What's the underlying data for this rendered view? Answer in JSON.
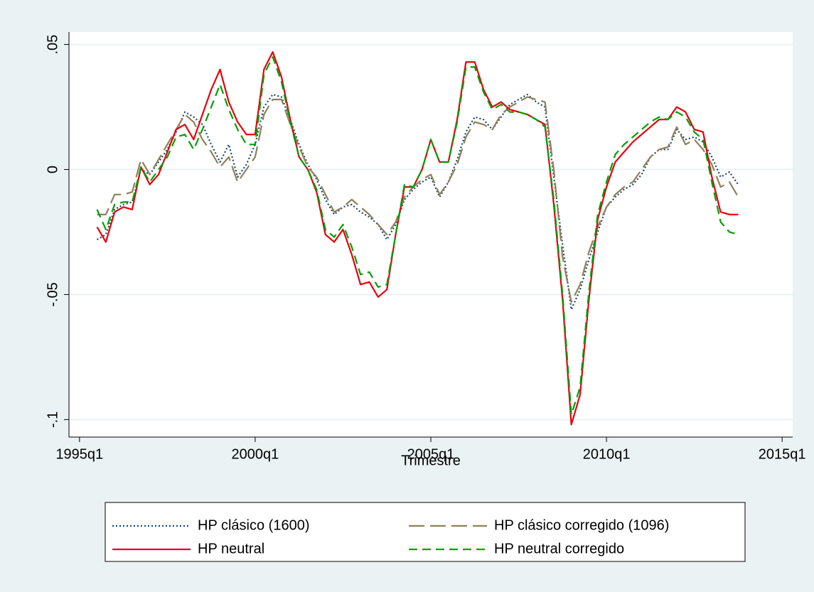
{
  "chart_data": {
    "type": "line",
    "xlabel": "Trimestre",
    "x": [
      1995.5,
      1995.75,
      1996,
      1996.25,
      1996.5,
      1996.75,
      1997,
      1997.25,
      1997.5,
      1997.75,
      1998,
      1998.25,
      1998.5,
      1998.75,
      1999,
      1999.25,
      1999.5,
      1999.75,
      2000,
      2000.25,
      2000.5,
      2000.75,
      2001,
      2001.25,
      2001.5,
      2001.75,
      2002,
      2002.25,
      2002.5,
      2002.75,
      2003,
      2003.25,
      2003.5,
      2003.75,
      2004,
      2004.25,
      2004.5,
      2004.75,
      2005,
      2005.25,
      2005.5,
      2005.75,
      2006,
      2006.25,
      2006.5,
      2006.75,
      2007,
      2007.25,
      2007.5,
      2007.75,
      2008,
      2008.25,
      2008.5,
      2008.75,
      2009,
      2009.25,
      2009.5,
      2009.75,
      2010,
      2010.25,
      2010.5,
      2010.75,
      2011,
      2011.25,
      2011.5,
      2011.75,
      2012,
      2012.25,
      2012.5,
      2012.75,
      2013,
      2013.25,
      2013.5,
      2013.75
    ],
    "series": [
      {
        "name": "HP clásico (1600)",
        "color": "#1a476f",
        "dash": "2 3",
        "values": [
          -0.028,
          -0.026,
          -0.016,
          -0.014,
          -0.013,
          0.0,
          -0.002,
          0.003,
          0.008,
          0.015,
          0.023,
          0.021,
          0.018,
          0.01,
          0.003,
          0.01,
          -0.003,
          0.002,
          0.01,
          0.025,
          0.03,
          0.029,
          0.02,
          0.01,
          0.002,
          -0.004,
          -0.012,
          -0.018,
          -0.015,
          -0.014,
          -0.017,
          -0.019,
          -0.022,
          -0.028,
          -0.022,
          -0.012,
          -0.008,
          -0.005,
          -0.003,
          -0.011,
          -0.005,
          0.004,
          0.015,
          0.021,
          0.02,
          0.016,
          0.021,
          0.026,
          0.028,
          0.03,
          0.027,
          0.025,
          -0.003,
          -0.03,
          -0.056,
          -0.048,
          -0.036,
          -0.025,
          -0.015,
          -0.011,
          -0.008,
          -0.006,
          -0.002,
          0.005,
          0.008,
          0.008,
          0.016,
          0.012,
          0.013,
          0.011,
          0.005,
          -0.003,
          -0.001,
          -0.006
        ]
      },
      {
        "name": "HP clásico corregido (1096)",
        "color": "#90805a",
        "dash": "22 8",
        "values": [
          -0.018,
          -0.018,
          -0.01,
          -0.01,
          -0.009,
          0.004,
          -0.002,
          0.004,
          0.01,
          0.016,
          0.022,
          0.019,
          0.012,
          0.007,
          0.001,
          0.005,
          -0.005,
          0.0,
          0.005,
          0.022,
          0.028,
          0.028,
          0.018,
          0.009,
          0.001,
          -0.003,
          -0.01,
          -0.017,
          -0.015,
          -0.012,
          -0.015,
          -0.018,
          -0.022,
          -0.026,
          -0.021,
          -0.011,
          -0.007,
          -0.004,
          -0.002,
          -0.01,
          -0.005,
          0.002,
          0.013,
          0.019,
          0.018,
          0.016,
          0.022,
          0.025,
          0.027,
          0.029,
          0.028,
          0.027,
          0.0,
          -0.035,
          -0.053,
          -0.046,
          -0.033,
          -0.023,
          -0.015,
          -0.01,
          -0.007,
          -0.005,
          0.0,
          0.005,
          0.008,
          0.009,
          0.017,
          0.01,
          0.012,
          0.008,
          0.002,
          -0.007,
          -0.005,
          -0.011
        ]
      },
      {
        "name": "HP neutral",
        "color": "#e8000b",
        "dash": "none",
        "values": [
          -0.023,
          -0.029,
          -0.017,
          -0.015,
          -0.016,
          0.001,
          -0.006,
          -0.002,
          0.007,
          0.016,
          0.018,
          0.012,
          0.022,
          0.032,
          0.04,
          0.027,
          0.019,
          0.014,
          0.014,
          0.04,
          0.047,
          0.037,
          0.02,
          0.005,
          0.0,
          -0.009,
          -0.026,
          -0.029,
          -0.024,
          -0.034,
          -0.046,
          -0.045,
          -0.051,
          -0.048,
          -0.026,
          -0.007,
          -0.007,
          0.0,
          0.012,
          0.003,
          0.003,
          0.02,
          0.043,
          0.043,
          0.032,
          0.025,
          0.027,
          0.024,
          0.023,
          0.022,
          0.02,
          0.018,
          -0.014,
          -0.052,
          -0.102,
          -0.09,
          -0.052,
          -0.02,
          -0.007,
          0.003,
          0.007,
          0.011,
          0.014,
          0.017,
          0.02,
          0.02,
          0.025,
          0.023,
          0.016,
          0.015,
          -0.003,
          -0.017,
          -0.018,
          -0.018
        ]
      },
      {
        "name": "HP neutral corregido",
        "color": "#00a000",
        "dash": "12 7",
        "values": [
          -0.016,
          -0.024,
          -0.014,
          -0.013,
          -0.013,
          0.001,
          -0.005,
          0.0,
          0.005,
          0.013,
          0.014,
          0.008,
          0.016,
          0.025,
          0.034,
          0.024,
          0.016,
          0.01,
          0.01,
          0.038,
          0.045,
          0.035,
          0.019,
          0.005,
          0.0,
          -0.008,
          -0.024,
          -0.027,
          -0.022,
          -0.031,
          -0.042,
          -0.041,
          -0.047,
          -0.046,
          -0.026,
          -0.006,
          -0.007,
          0.0,
          0.012,
          0.003,
          0.003,
          0.019,
          0.041,
          0.041,
          0.031,
          0.024,
          0.026,
          0.023,
          0.023,
          0.022,
          0.02,
          0.017,
          -0.012,
          -0.05,
          -0.098,
          -0.087,
          -0.049,
          -0.018,
          -0.005,
          0.006,
          0.01,
          0.013,
          0.016,
          0.019,
          0.021,
          0.02,
          0.023,
          0.021,
          0.015,
          0.012,
          -0.005,
          -0.021,
          -0.025,
          -0.026
        ]
      }
    ],
    "xlim": [
      1994.7,
      2015.3
    ],
    "xticks": [
      {
        "value": 1995,
        "label": "1995q1"
      },
      {
        "value": 2000,
        "label": "2000q1"
      },
      {
        "value": 2005,
        "label": "2005q1"
      },
      {
        "value": 2010,
        "label": "2010q1"
      },
      {
        "value": 2015,
        "label": "2015q1"
      }
    ],
    "ylim": [
      -0.107,
      0.055
    ],
    "yticks": [
      {
        "value": -0.1,
        "label": "-.1"
      },
      {
        "value": -0.05,
        "label": "-.05"
      },
      0,
      {
        "value": 0.05,
        "label": ".05"
      }
    ],
    "grid": true
  }
}
